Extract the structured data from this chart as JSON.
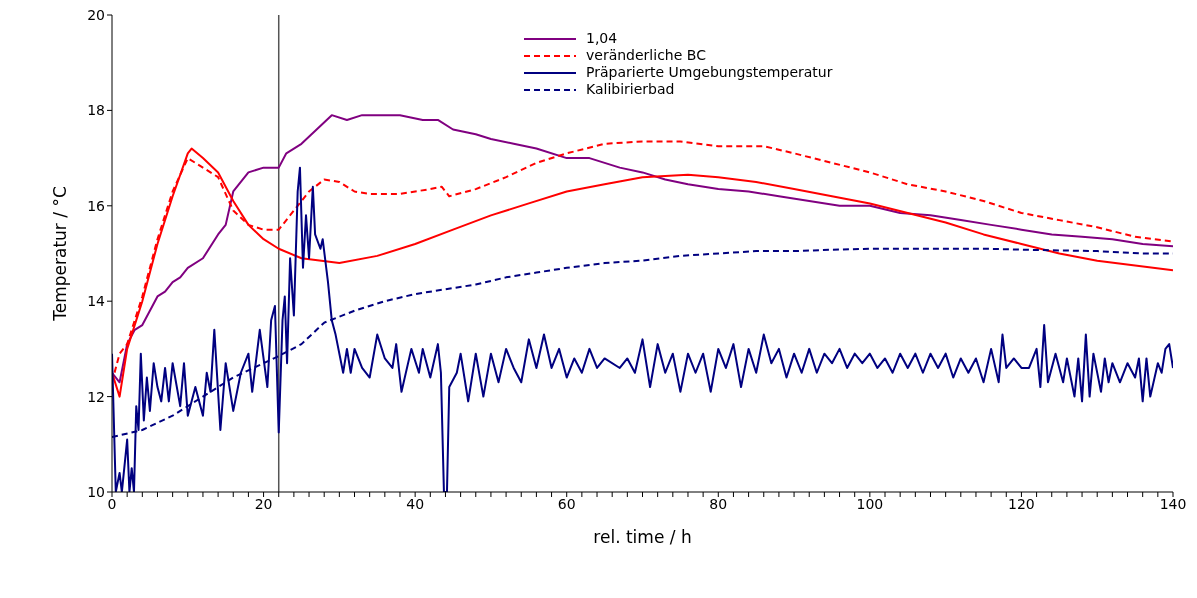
{
  "chart_data": {
    "type": "line",
    "xlabel": "rel. time / h",
    "ylabel": "Temperatur / °C",
    "xlim": [
      0,
      140
    ],
    "ylim": [
      10,
      20
    ],
    "xticks": [
      0,
      {
        "value": 2,
        "label": null
      },
      {
        "value": 4,
        "label": null
      },
      {
        "value": 6,
        "label": null
      },
      {
        "value": 8,
        "label": null
      },
      {
        "value": 10,
        "label": null
      },
      {
        "value": 12,
        "label": null
      },
      {
        "value": 14,
        "label": null
      },
      {
        "value": 16,
        "label": null
      },
      {
        "value": 18,
        "label": null
      },
      20,
      {
        "value": 22,
        "label": null
      },
      {
        "value": 24,
        "label": null
      },
      {
        "value": 26,
        "label": null
      },
      {
        "value": 28,
        "label": null
      },
      {
        "value": 30,
        "label": null
      },
      {
        "value": 32,
        "label": null
      },
      {
        "value": 34,
        "label": null
      },
      {
        "value": 36,
        "label": null
      },
      {
        "value": 38,
        "label": null
      },
      40,
      {
        "value": 42,
        "label": null
      },
      {
        "value": 44,
        "label": null
      },
      {
        "value": 46,
        "label": null
      },
      {
        "value": 48,
        "label": null
      },
      {
        "value": 50,
        "label": null
      },
      {
        "value": 52,
        "label": null
      },
      {
        "value": 54,
        "label": null
      },
      {
        "value": 56,
        "label": null
      },
      {
        "value": 58,
        "label": null
      },
      60,
      {
        "value": 62,
        "label": null
      },
      {
        "value": 64,
        "label": null
      },
      {
        "value": 66,
        "label": null
      },
      {
        "value": 68,
        "label": null
      },
      {
        "value": 70,
        "label": null
      },
      {
        "value": 72,
        "label": null
      },
      {
        "value": 74,
        "label": null
      },
      {
        "value": 76,
        "label": null
      },
      {
        "value": 78,
        "label": null
      },
      80,
      {
        "value": 82,
        "label": null
      },
      {
        "value": 84,
        "label": null
      },
      {
        "value": 86,
        "label": null
      },
      {
        "value": 88,
        "label": null
      },
      {
        "value": 90,
        "label": null
      },
      {
        "value": 92,
        "label": null
      },
      {
        "value": 94,
        "label": null
      },
      {
        "value": 96,
        "label": null
      },
      {
        "value": 98,
        "label": null
      },
      100,
      {
        "value": 102,
        "label": null
      },
      {
        "value": 104,
        "label": null
      },
      {
        "value": 106,
        "label": null
      },
      {
        "value": 108,
        "label": null
      },
      {
        "value": 110,
        "label": null
      },
      {
        "value": 112,
        "label": null
      },
      {
        "value": 114,
        "label": null
      },
      {
        "value": 116,
        "label": null
      },
      {
        "value": 118,
        "label": null
      },
      120,
      {
        "value": 122,
        "label": null
      },
      {
        "value": 124,
        "label": null
      },
      {
        "value": 126,
        "label": null
      },
      {
        "value": 128,
        "label": null
      },
      {
        "value": 130,
        "label": null
      },
      {
        "value": 132,
        "label": null
      },
      {
        "value": 134,
        "label": null
      },
      {
        "value": 136,
        "label": null
      },
      {
        "value": 138,
        "label": null
      },
      140
    ],
    "yticks": [
      10,
      12,
      14,
      16,
      18,
      20
    ],
    "grid": false,
    "legend": "top",
    "marker": "none",
    "ref_lines": [
      {
        "axis": "x",
        "value": 22,
        "color": "#555555"
      }
    ],
    "series": [
      {
        "name": "1,04",
        "color": "#800080",
        "line_style": "solid",
        "x": [
          0,
          1,
          2,
          3,
          4,
          5,
          6,
          7,
          8,
          9,
          10,
          12,
          14,
          15,
          16,
          18,
          20,
          22,
          23,
          25,
          27,
          29,
          31,
          33,
          35,
          38,
          41,
          43,
          45,
          48,
          50,
          53,
          56,
          60,
          63,
          67,
          70,
          73,
          76,
          80,
          84,
          88,
          92,
          96,
          100,
          104,
          108,
          112,
          116,
          120,
          124,
          128,
          132,
          136,
          140
        ],
        "values": [
          12.5,
          12.3,
          13.1,
          13.4,
          13.5,
          13.8,
          14.1,
          14.2,
          14.4,
          14.5,
          14.7,
          14.9,
          15.4,
          15.6,
          16.3,
          16.7,
          16.8,
          16.8,
          17.1,
          17.3,
          17.6,
          17.9,
          17.8,
          17.9,
          17.9,
          17.9,
          17.8,
          17.8,
          17.6,
          17.5,
          17.4,
          17.3,
          17.2,
          17.0,
          17.0,
          16.8,
          16.7,
          16.55,
          16.45,
          16.35,
          16.3,
          16.2,
          16.1,
          16.0,
          16.0,
          15.85,
          15.8,
          15.7,
          15.6,
          15.5,
          15.4,
          15.35,
          15.3,
          15.2,
          15.15
        ]
      },
      {
        "color": "#ff0000",
        "line_style": "solid",
        "x": [
          0,
          1,
          2,
          4,
          6,
          8,
          10,
          10.5,
          12,
          14,
          16,
          18,
          20,
          22,
          25,
          30,
          35,
          40,
          45,
          50,
          55,
          60,
          65,
          70,
          76,
          80,
          85,
          90,
          95,
          100,
          105,
          110,
          115,
          120,
          125,
          130,
          135,
          140
        ],
        "values": [
          12.5,
          12.0,
          13.0,
          14.0,
          15.2,
          16.2,
          17.1,
          17.2,
          17.0,
          16.7,
          16.1,
          15.6,
          15.3,
          15.1,
          14.9,
          14.8,
          14.95,
          15.2,
          15.5,
          15.8,
          16.05,
          16.3,
          16.45,
          16.6,
          16.65,
          16.6,
          16.5,
          16.35,
          16.2,
          16.05,
          15.85,
          15.65,
          15.4,
          15.2,
          15.0,
          14.85,
          14.75,
          14.65
        ]
      },
      {
        "name": "veränderliche BC",
        "color": "#ff0000",
        "line_style": "dashed",
        "x": [
          0,
          1,
          2,
          4,
          6,
          8,
          10,
          12,
          14,
          16,
          18,
          20,
          22,
          24,
          26,
          28,
          30,
          32,
          34,
          38,
          42,
          43.5,
          44.5,
          48,
          52,
          56,
          60,
          65,
          70,
          75,
          80,
          86,
          90,
          95,
          100,
          105,
          110,
          115,
          120,
          125,
          130,
          135,
          140
        ],
        "values": [
          12.3,
          12.9,
          13.1,
          14.1,
          15.3,
          16.3,
          17.0,
          16.8,
          16.6,
          15.9,
          15.6,
          15.5,
          15.5,
          15.9,
          16.3,
          16.55,
          16.5,
          16.3,
          16.25,
          16.25,
          16.35,
          16.4,
          16.2,
          16.35,
          16.6,
          16.9,
          17.1,
          17.3,
          17.35,
          17.35,
          17.25,
          17.25,
          17.1,
          16.9,
          16.7,
          16.45,
          16.3,
          16.1,
          15.85,
          15.7,
          15.55,
          15.35,
          15.25
        ]
      },
      {
        "name": "Präparierte Umgebungstemperatur",
        "color": "#000080",
        "line_style": "solid",
        "x": [
          0,
          0.5,
          1,
          1.3,
          2,
          2.3,
          2.6,
          2.9,
          3.2,
          3.5,
          3.8,
          4.2,
          4.6,
          5,
          5.5,
          6,
          6.5,
          7,
          7.5,
          8,
          9,
          9.5,
          10,
          11,
          12,
          12.5,
          13,
          13.5,
          14.3,
          15,
          16,
          17,
          18,
          18.5,
          19.5,
          20.5,
          21,
          21.5,
          22,
          22.5,
          22.8,
          23.1,
          23.5,
          24,
          24.5,
          24.8,
          25.2,
          25.6,
          26,
          26.5,
          26.8,
          27.5,
          27.8,
          28.5,
          29,
          29.5,
          30.5,
          31,
          31.5,
          32,
          33,
          34,
          35,
          36,
          37,
          37.5,
          38.2,
          39.5,
          40.5,
          41,
          42,
          43,
          43.4,
          43.8,
          44.2,
          44.5,
          45.5,
          46,
          47,
          48,
          49,
          50,
          51,
          52,
          53,
          54,
          55,
          56,
          57,
          58,
          59,
          60,
          61,
          62,
          63,
          64,
          65,
          67,
          68,
          69,
          70,
          71,
          72,
          73,
          74,
          75,
          76,
          77,
          78,
          79,
          80,
          81,
          82,
          83,
          84,
          85,
          86,
          87,
          88,
          89,
          90,
          91,
          92,
          93,
          94,
          95,
          96,
          97,
          98,
          99,
          100,
          101,
          102,
          103,
          104,
          105,
          106,
          107,
          108,
          109,
          110,
          111,
          112,
          113,
          114,
          115,
          116,
          117,
          117.5,
          118,
          119,
          120,
          121,
          122,
          122.5,
          123,
          123.5,
          124.5,
          125.5,
          126,
          127,
          127.5,
          128,
          128.5,
          129,
          129.5,
          130.5,
          131,
          131.5,
          132,
          133,
          134,
          135,
          135.5,
          136,
          136.5,
          137,
          138,
          138.5,
          139,
          139.5,
          140
        ],
        "values": [
          12.9,
          10.0,
          10.4,
          10.0,
          11.1,
          10.0,
          10.5,
          10.0,
          11.8,
          11.3,
          12.9,
          11.5,
          12.4,
          11.7,
          12.7,
          12.2,
          11.9,
          12.6,
          11.9,
          12.7,
          11.8,
          12.7,
          11.6,
          12.2,
          11.6,
          12.5,
          12.1,
          13.4,
          11.3,
          12.7,
          11.7,
          12.5,
          12.9,
          12.1,
          13.4,
          12.2,
          13.6,
          13.9,
          11.25,
          13.6,
          14.1,
          12.7,
          14.9,
          13.7,
          16.3,
          16.8,
          14.7,
          15.8,
          14.9,
          16.4,
          15.4,
          15.1,
          15.3,
          14.4,
          13.6,
          13.3,
          12.5,
          13.0,
          12.5,
          13.0,
          12.6,
          12.4,
          13.3,
          12.8,
          12.6,
          13.1,
          12.1,
          13.0,
          12.5,
          13.0,
          12.4,
          13.1,
          12.5,
          10.0,
          10.0,
          12.2,
          12.5,
          12.9,
          11.9,
          12.9,
          12.0,
          12.9,
          12.3,
          13.0,
          12.6,
          12.3,
          13.2,
          12.6,
          13.3,
          12.6,
          13.0,
          12.4,
          12.8,
          12.5,
          13.0,
          12.6,
          12.8,
          12.6,
          12.8,
          12.5,
          13.2,
          12.2,
          13.1,
          12.5,
          12.9,
          12.1,
          12.9,
          12.5,
          12.9,
          12.1,
          13.0,
          12.6,
          13.1,
          12.2,
          13.0,
          12.5,
          13.3,
          12.7,
          13.0,
          12.4,
          12.9,
          12.5,
          13.0,
          12.5,
          12.9,
          12.7,
          13.0,
          12.6,
          12.9,
          12.7,
          12.9,
          12.6,
          12.8,
          12.5,
          12.9,
          12.6,
          12.9,
          12.5,
          12.9,
          12.6,
          12.9,
          12.4,
          12.8,
          12.5,
          12.8,
          12.3,
          13.0,
          12.3,
          13.3,
          12.6,
          12.8,
          12.6,
          12.6,
          13.0,
          12.2,
          13.5,
          12.3,
          12.9,
          12.3,
          12.8,
          12.0,
          12.8,
          11.9,
          13.3,
          12.0,
          12.9,
          12.1,
          12.8,
          12.3,
          12.7,
          12.3,
          12.7,
          12.4,
          12.8,
          11.9,
          12.8,
          12.0,
          12.7,
          12.5,
          13.0,
          13.1,
          12.6
        ]
      },
      {
        "name": "Kalibirierbad",
        "color": "#000080",
        "line_style": "dashed",
        "x": [
          0,
          4,
          8,
          12,
          16,
          20,
          22,
          25,
          28,
          32,
          36,
          40,
          44,
          48,
          52,
          56,
          60,
          65,
          70,
          75,
          80,
          85,
          90,
          95,
          100,
          110,
          115,
          120,
          130,
          136,
          140
        ],
        "values": [
          11.15,
          11.3,
          11.6,
          12.0,
          12.4,
          12.7,
          12.85,
          13.1,
          13.55,
          13.8,
          14.0,
          14.15,
          14.25,
          14.35,
          14.5,
          14.6,
          14.7,
          14.8,
          14.85,
          14.95,
          15.0,
          15.05,
          15.05,
          15.08,
          15.1,
          15.1,
          15.1,
          15.08,
          15.05,
          15.0,
          15.0
        ]
      }
    ]
  }
}
